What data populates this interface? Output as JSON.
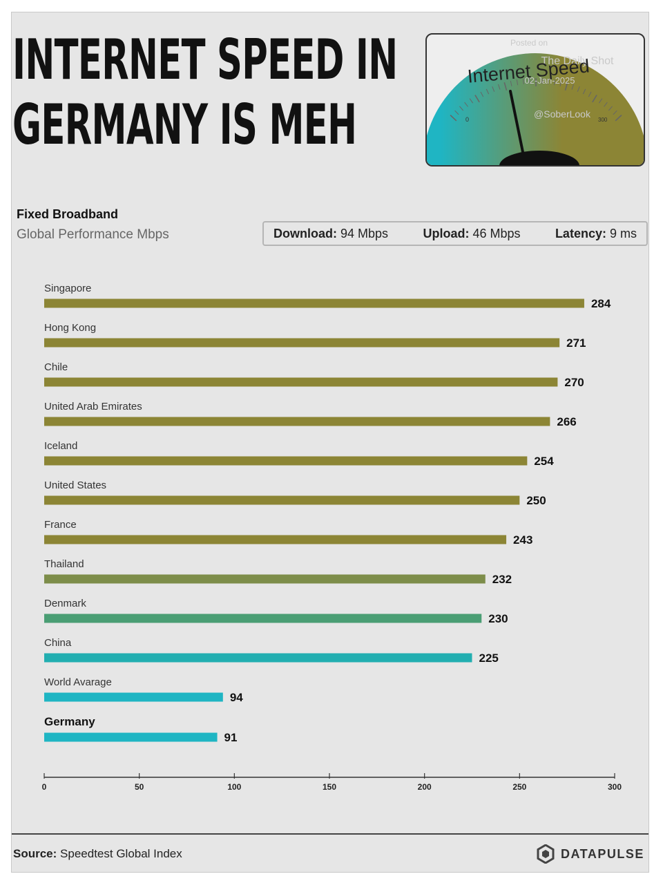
{
  "title": {
    "line1": "INTERNET SPEED IN",
    "line2": "GERMANY IS MEH"
  },
  "gauge": {
    "label": "Internet Speed",
    "scale_min": "0",
    "scale_max": "300",
    "watermark": [
      "Posted on",
      "The Daily Shot",
      "02-Jan-2025",
      "@SoberLook"
    ],
    "colors": {
      "low": "#1fb5c3",
      "high": "#8c8535"
    }
  },
  "subtitle": {
    "title": "Fixed Broadband",
    "subtitle": "Global Performance Mbps"
  },
  "stats": {
    "download_label": "Download:",
    "download_value": "94 Mbps",
    "upload_label": "Upload:",
    "upload_value": "46 Mbps",
    "latency_label": "Latency:",
    "latency_value": "9 ms"
  },
  "chart_data": {
    "type": "bar",
    "orientation": "horizontal",
    "categories": [
      "Singapore",
      "Hong Kong",
      "Chile",
      "United Arab Emirates",
      "Iceland",
      "United States",
      "France",
      "Thailand",
      "Denmark",
      "China",
      "World Avarage",
      "Germany"
    ],
    "values": [
      284,
      271,
      270,
      266,
      254,
      250,
      243,
      232,
      230,
      225,
      94,
      91
    ],
    "bar_colors": [
      "#8c8535",
      "#8c8535",
      "#8c8535",
      "#8c8535",
      "#8c8535",
      "#8c8535",
      "#8c8535",
      "#7d8d4a",
      "#4a9e74",
      "#22aeb0",
      "#1fb5c3",
      "#1fb5c3"
    ],
    "highlight": "Germany",
    "xlim": [
      0,
      300
    ],
    "xticks": [
      0,
      50,
      100,
      150,
      200,
      250,
      300
    ],
    "grid": false,
    "xlabel": "",
    "ylabel": ""
  },
  "footer": {
    "source_label": "Source:",
    "source_value": "Speedtest Global Index",
    "brand": "DATAPULSE"
  }
}
